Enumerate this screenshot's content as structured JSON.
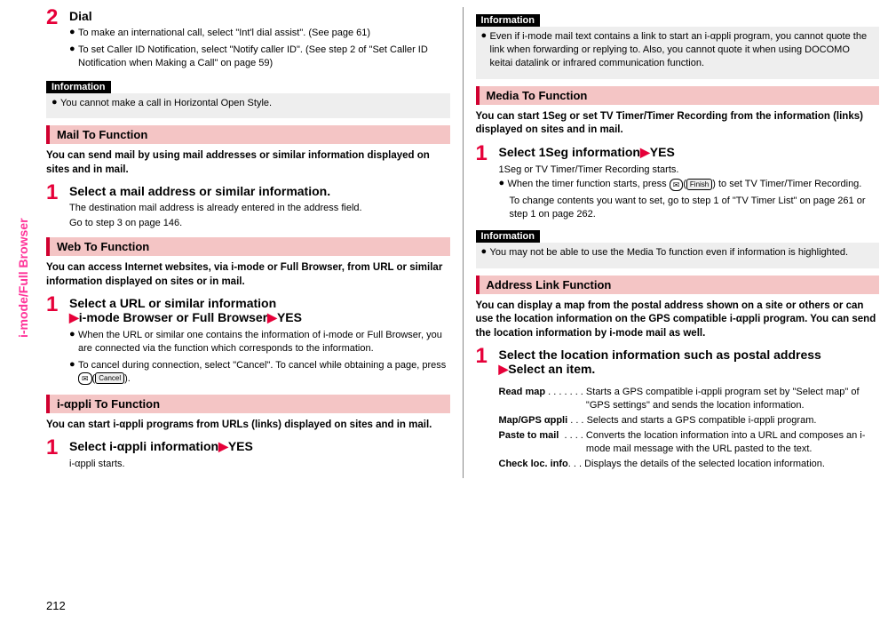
{
  "sidebar": "i-mode/Full Browser",
  "pageNumber": "212",
  "left": {
    "step2": {
      "num": "2",
      "title": "Dial",
      "b1": "To make an international call, select \"Int'l dial assist\". (See page 61)",
      "b2": "To set Caller ID Notification, select \"Notify caller ID\". (See step 2 of \"Set Caller ID Notification when Making a Call\" on page 59)"
    },
    "info1": {
      "label": "Information",
      "text": "You cannot make a call in Horizontal Open Style."
    },
    "mailTo": {
      "bar": "Mail To Function",
      "intro": "You can send mail by using mail addresses or similar information displayed on sites and in mail.",
      "s1num": "1",
      "s1title": "Select a mail address or similar information.",
      "s1b1": "The destination mail address is already entered in the address field.",
      "s1b2": "Go to step 3 on page 146."
    },
    "webTo": {
      "bar": "Web To Function",
      "intro": "You can access Internet websites, via i-mode or Full Browser, from URL or similar information displayed on sites or in mail.",
      "s1num": "1",
      "s1titleA": "Select a URL or similar information",
      "s1titleB": "i-mode Browser or Full Browser",
      "s1titleC": "YES",
      "b1": "When the URL or similar one contains the information of i-mode or Full Browser, you are connected via the function which corresponds to the information.",
      "b2a": "To cancel during connection, select \"Cancel\". To cancel while obtaining a page, press ",
      "b2b": "✉",
      "b2c": "Cancel",
      "b2d": "."
    },
    "iappliTo": {
      "bar": "i-αppli To Function",
      "intro": "You can start i-αppli programs from URLs (links) displayed on sites and in mail.",
      "s1num": "1",
      "s1titleA": "Select i-αppli information",
      "s1titleB": "YES",
      "s1body": "i-αppli starts."
    }
  },
  "right": {
    "info1": {
      "label": "Information",
      "text": "Even if i-mode mail text contains a link to start an i-αppli program, you cannot quote the link when forwarding or replying to. Also, you cannot quote it when using DOCOMO keitai datalink or infrared communication function."
    },
    "mediaTo": {
      "bar": "Media To Function",
      "intro": "You can start 1Seg or set TV Timer/Timer Recording from the information (links) displayed on sites and in mail.",
      "s1num": "1",
      "s1titleA": "Select 1Seg information",
      "s1titleB": "YES",
      "b1": "1Seg or TV Timer/Timer Recording starts.",
      "b2a": "When the timer function starts, press ",
      "b2b": "✉",
      "b2c": "Finish",
      "b2d": " to set TV Timer/Timer Recording.",
      "b3": "To change contents you want to set, go to step 1 of \"TV Timer List\" on page 261 or step 1 on page 262."
    },
    "info2": {
      "label": "Information",
      "text": "You may not be able to use the Media To function even if information is highlighted."
    },
    "addressLink": {
      "bar": "Address Link Function",
      "intro": "You can display a map from the postal address shown on a site or others or can use the location information on the GPS compatible i-αppli program. You can send the location information by i-mode mail as well.",
      "s1num": "1",
      "s1titleA": "Select the location information such as postal address",
      "s1titleB": "Select an item.",
      "defs": {
        "d1t": "Read map",
        "d1dots": " . . . . . . . ",
        "d1d": "Starts a GPS compatible i-αppli program set by \"Select map\" of \"GPS settings\" and sends the location information.",
        "d2t": "Map/GPS αppli",
        "d2dots": " . . . ",
        "d2d": "Selects and starts a GPS compatible i-αppli program.",
        "d3t": "Paste to mail",
        "d3dots": "  . . . . ",
        "d3d": "Converts the location information into a URL and composes an i-mode mail message with the URL pasted to the text.",
        "d4t": "Check loc. info",
        "d4dots": ". . . ",
        "d4d": "Displays the details of the selected location information."
      }
    }
  }
}
